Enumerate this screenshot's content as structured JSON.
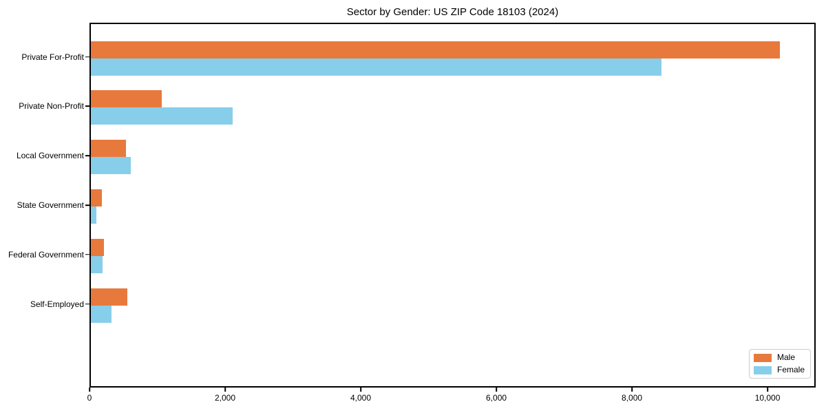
{
  "title": "Sector by Gender: US ZIP Code 18103 (2024)",
  "colors": {
    "male": "#e8793d",
    "female": "#87ceeb",
    "spine": "#000000",
    "legend_border": "#cccccc",
    "text": "#000000"
  },
  "chart_data": {
    "type": "bar",
    "orientation": "horizontal",
    "title": "Sector by Gender: US ZIP Code 18103 (2024)",
    "categories": [
      "Private For-Profit",
      "Private Non-Profit",
      "Local Government",
      "State Government",
      "Federal Government",
      "Self-Employed"
    ],
    "series": [
      {
        "name": "Male",
        "color": "#e8793d",
        "values": [
          10200,
          1045,
          520,
          165,
          190,
          535
        ]
      },
      {
        "name": "Female",
        "color": "#87ceeb",
        "values": [
          8450,
          2095,
          595,
          85,
          175,
          310
        ]
      }
    ],
    "xlabel": "",
    "ylabel": "",
    "xlim": [
      0,
      10710
    ],
    "xticks": [
      0,
      2000,
      4000,
      6000,
      8000,
      10000
    ],
    "xtick_labels": [
      "0",
      "2,000",
      "4,000",
      "6,000",
      "8,000",
      "10,000"
    ],
    "grid": false,
    "legend": {
      "position": "lower right",
      "labels": [
        "Male",
        "Female"
      ]
    }
  }
}
